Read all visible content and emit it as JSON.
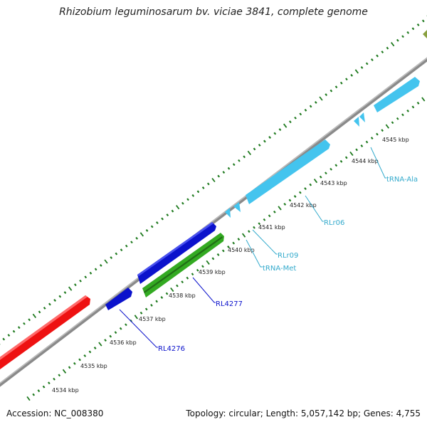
{
  "title": "Rhizobium leguminosarum bv. viciae 3841, complete genome",
  "footer": {
    "accession": "Accession: NC_008380",
    "topology": "Topology: circular; Length: 5,057,142 bp; Genes: 4,755"
  },
  "colors": {
    "backbone": "#8a8a8a",
    "ticks": "#1f7a1f",
    "red_feature": "#ee1111",
    "blue_feature": "#0b12cc",
    "green_feature": "#33aa22",
    "cyan_feature": "#44c4ee",
    "olive_feature": "#8aa040"
  },
  "tick_labels": [
    "4534 kbp",
    "4535 kbp",
    "4536 kbp",
    "4537 kbp",
    "4538 kbp",
    "4539 kbp",
    "4540 kbp",
    "4541 kbp",
    "4542 kbp",
    "4543 kbp",
    "4544 kbp",
    "4545 kbp"
  ],
  "feature_labels": [
    {
      "text": "RL4276",
      "color": "#0b12cc"
    },
    {
      "text": "RL4277",
      "color": "#0b12cc"
    },
    {
      "text": "tRNA-Met",
      "color": "#33aacc"
    },
    {
      "text": "RLr09",
      "color": "#33aacc"
    },
    {
      "text": "RLr06",
      "color": "#33aacc"
    },
    {
      "text": "tRNA-Ala",
      "color": "#33aacc"
    }
  ]
}
